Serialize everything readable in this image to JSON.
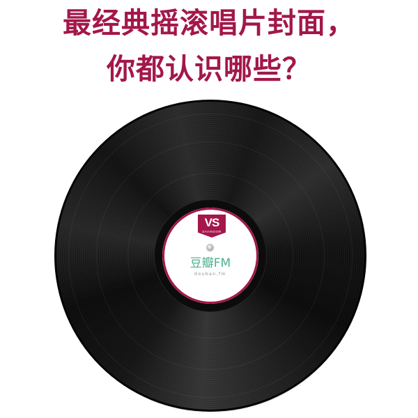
{
  "headline": {
    "line1": "最经典摇滚唱片封面，",
    "line2": "你都认识哪些？"
  },
  "record_label": {
    "logo_mark": "VS",
    "logo_subtext": "SAVINGOR",
    "brand_name": "豆瓣FM",
    "brand_url": "douban.fm"
  },
  "colors": {
    "headline": "#a3174a",
    "logo": "#a3174a",
    "brand": "#4fae8f",
    "record": "#111111",
    "background": "#ffffff"
  }
}
